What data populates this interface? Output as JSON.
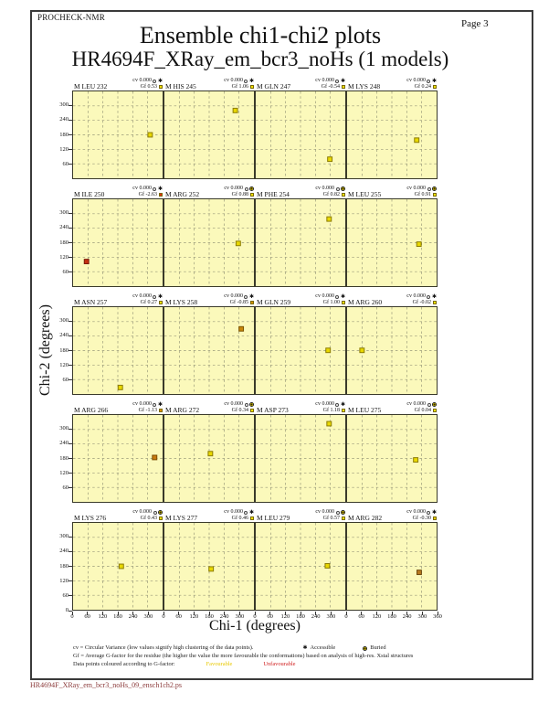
{
  "header": {
    "app": "PROCHECK-NMR",
    "page_label": "Page  3",
    "title": "Ensemble chi1-chi2 plots",
    "subtitle": "HR4694F_XRay_em_bcr3_noHs (1 models)"
  },
  "labels": {
    "cv_label": "cv",
    "gf_label": "Gf"
  },
  "colors": {
    "plot_bg": "#fbf9bb",
    "grid_line": "#99997a",
    "plot_border": "#3a3a2a",
    "favourable_text": "#e8c800",
    "unfavourable_text": "#d02020",
    "accessible_star": "#111111",
    "buried_fill": "#f0e000",
    "default_point": "#e8d800",
    "default_point_border": "#8a7a00"
  },
  "legend": {
    "cv_line": "cv = Circular Variance (low values signify high clustering of the data points).",
    "accessible": "Accessible",
    "buried": "Buried",
    "gf_line": "Gf = Average G-factor for the residue (the higher the value the more favourable the conformations) based on analysis of high-res. Xstal structures",
    "colour_line": "Data points coloured according to G-factor:",
    "favourable": "Favourable",
    "unfavourable": "Unfavourable"
  },
  "footer": {
    "filename": "HR4694F_XRay_em_bcr3_noHs_09_ensch1ch2.ps"
  },
  "chart_data": {
    "type": "scatter",
    "title": "Ensemble chi1-chi2 plots",
    "subtitle": "HR4694F_XRay_em_bcr3_noHs (1 models)",
    "xlabel": "Chi-1 (degrees)",
    "ylabel": "Chi-2 (degrees)",
    "xlim": [
      0,
      360
    ],
    "ylim": [
      0,
      360
    ],
    "grid_step": 60,
    "grid": true,
    "x_ticks": [
      0,
      60,
      120,
      180,
      240,
      300
    ],
    "x_end_tick": 360,
    "y_ticks": [
      60,
      120,
      180,
      240,
      300
    ],
    "y_zero_tick": 0,
    "columns": 4,
    "rows": 5,
    "subplots": [
      {
        "residue": "M LEU 232",
        "cv": "0.000",
        "gf": "0.53",
        "accessibility": "accessible",
        "square": "#f5e400",
        "point": {
          "chi1": 310,
          "chi2": 180,
          "color": "#e8d800",
          "border": "#8a7a00"
        }
      },
      {
        "residue": "M HIS 245",
        "cv": "0.000",
        "gf": "1.06",
        "accessibility": "accessible",
        "square": "#f5e400",
        "point": {
          "chi1": 285,
          "chi2": 281,
          "color": "#e8d800",
          "border": "#8a7a00"
        }
      },
      {
        "residue": "M GLN 247",
        "cv": "0.000",
        "gf": "-0.54",
        "accessibility": "accessible",
        "square": "#f5e400",
        "point": {
          "chi1": 298,
          "chi2": 79,
          "color": "#e8d800",
          "border": "#8a7a00"
        }
      },
      {
        "residue": "M LYS 248",
        "cv": "0.000",
        "gf": "0.24",
        "accessibility": "accessible",
        "square": "#f5e400",
        "point": {
          "chi1": 280,
          "chi2": 158,
          "color": "#e8d800",
          "border": "#8a7a00"
        }
      },
      {
        "residue": "M ILE 250",
        "cv": "0.000",
        "gf": "-2.63",
        "accessibility": "accessible",
        "square": "#e03010",
        "point": {
          "chi1": 54,
          "chi2": 102,
          "color": "#c53010",
          "border": "#7a1a08"
        }
      },
      {
        "residue": "M ARG 252",
        "cv": "0.000",
        "gf": "0.88",
        "accessibility": "buried",
        "square": "#f5e400",
        "point": {
          "chi1": 297,
          "chi2": 177,
          "color": "#e8d800",
          "border": "#8a7a00"
        }
      },
      {
        "residue": "M PHE 254",
        "cv": "0.000",
        "gf": "0.82",
        "accessibility": "buried",
        "square": "#f5e400",
        "point": {
          "chi1": 295,
          "chi2": 278,
          "color": "#e8d800",
          "border": "#8a7a00"
        }
      },
      {
        "residue": "M LEU 255",
        "cv": "0.000",
        "gf": "0.91",
        "accessibility": "buried",
        "square": "#f5e400",
        "point": {
          "chi1": 289,
          "chi2": 174,
          "color": "#e8d800",
          "border": "#8a7a00"
        }
      },
      {
        "residue": "M ASN 257",
        "cv": "0.000",
        "gf": "0.27",
        "accessibility": "accessible",
        "square": "#f5e400",
        "point": {
          "chi1": 190,
          "chi2": 27,
          "color": "#e8d800",
          "border": "#8a7a00"
        }
      },
      {
        "residue": "M LYS 258",
        "cv": "0.000",
        "gf": "-0.85",
        "accessibility": "accessible",
        "square": "#d29000",
        "point": {
          "chi1": 309,
          "chi2": 270,
          "color": "#c8860a",
          "border": "#7a5200"
        }
      },
      {
        "residue": "M GLN 259",
        "cv": "0.000",
        "gf": "1.00",
        "accessibility": "accessible",
        "square": "#f5e400",
        "point": {
          "chi1": 291,
          "chi2": 181,
          "color": "#e8d800",
          "border": "#8a7a00"
        }
      },
      {
        "residue": "M ARG 260",
        "cv": "0.000",
        "gf": "-0.02",
        "accessibility": "accessible",
        "square": "#f5e400",
        "point": {
          "chi1": 60,
          "chi2": 181,
          "color": "#e8d800",
          "border": "#8a7a00"
        }
      },
      {
        "residue": "M ARG 266",
        "cv": "0.000",
        "gf": "-1.13",
        "accessibility": "accessible",
        "square": "#e09000",
        "point": {
          "chi1": 328,
          "chi2": 184,
          "color": "#c87a10",
          "border": "#7a4a00"
        }
      },
      {
        "residue": "M ARG 272",
        "cv": "0.000",
        "gf": "0.34",
        "accessibility": "buried",
        "square": "#f5e400",
        "point": {
          "chi1": 185,
          "chi2": 200,
          "color": "#e8d800",
          "border": "#8a7a00"
        }
      },
      {
        "residue": "M ASP 273",
        "cv": "0.000",
        "gf": "1.18",
        "accessibility": "accessible",
        "square": "#f5e400",
        "point": {
          "chi1": 295,
          "chi2": 324,
          "color": "#e8d800",
          "border": "#8a7a00"
        }
      },
      {
        "residue": "M LEU 275",
        "cv": "0.000",
        "gf": "0.04",
        "accessibility": "buried",
        "square": "#f5e400",
        "point": {
          "chi1": 276,
          "chi2": 174,
          "color": "#e8d800",
          "border": "#8a7a00"
        }
      },
      {
        "residue": "M LYS 276",
        "cv": "0.000",
        "gf": "0.43",
        "accessibility": "buried",
        "square": "#f5e400",
        "point": {
          "chi1": 194,
          "chi2": 180,
          "color": "#e8d800",
          "border": "#8a7a00"
        }
      },
      {
        "residue": "M LYS 277",
        "cv": "0.000",
        "gf": "0.46",
        "accessibility": "accessible",
        "square": "#f5e400",
        "point": {
          "chi1": 188,
          "chi2": 169,
          "color": "#e8d800",
          "border": "#8a7a00"
        }
      },
      {
        "residue": "M LEU 279",
        "cv": "0.000",
        "gf": "0.57",
        "accessibility": "buried",
        "square": "#f5e400",
        "point": {
          "chi1": 288,
          "chi2": 182,
          "color": "#e8d800",
          "border": "#8a7a00"
        }
      },
      {
        "residue": "M ARG 282",
        "cv": "0.000",
        "gf": "-0.30",
        "accessibility": "accessible",
        "square": "#e8d000",
        "point": {
          "chi1": 290,
          "chi2": 155,
          "color": "#b87a20",
          "border": "#6e4a10"
        }
      }
    ]
  }
}
